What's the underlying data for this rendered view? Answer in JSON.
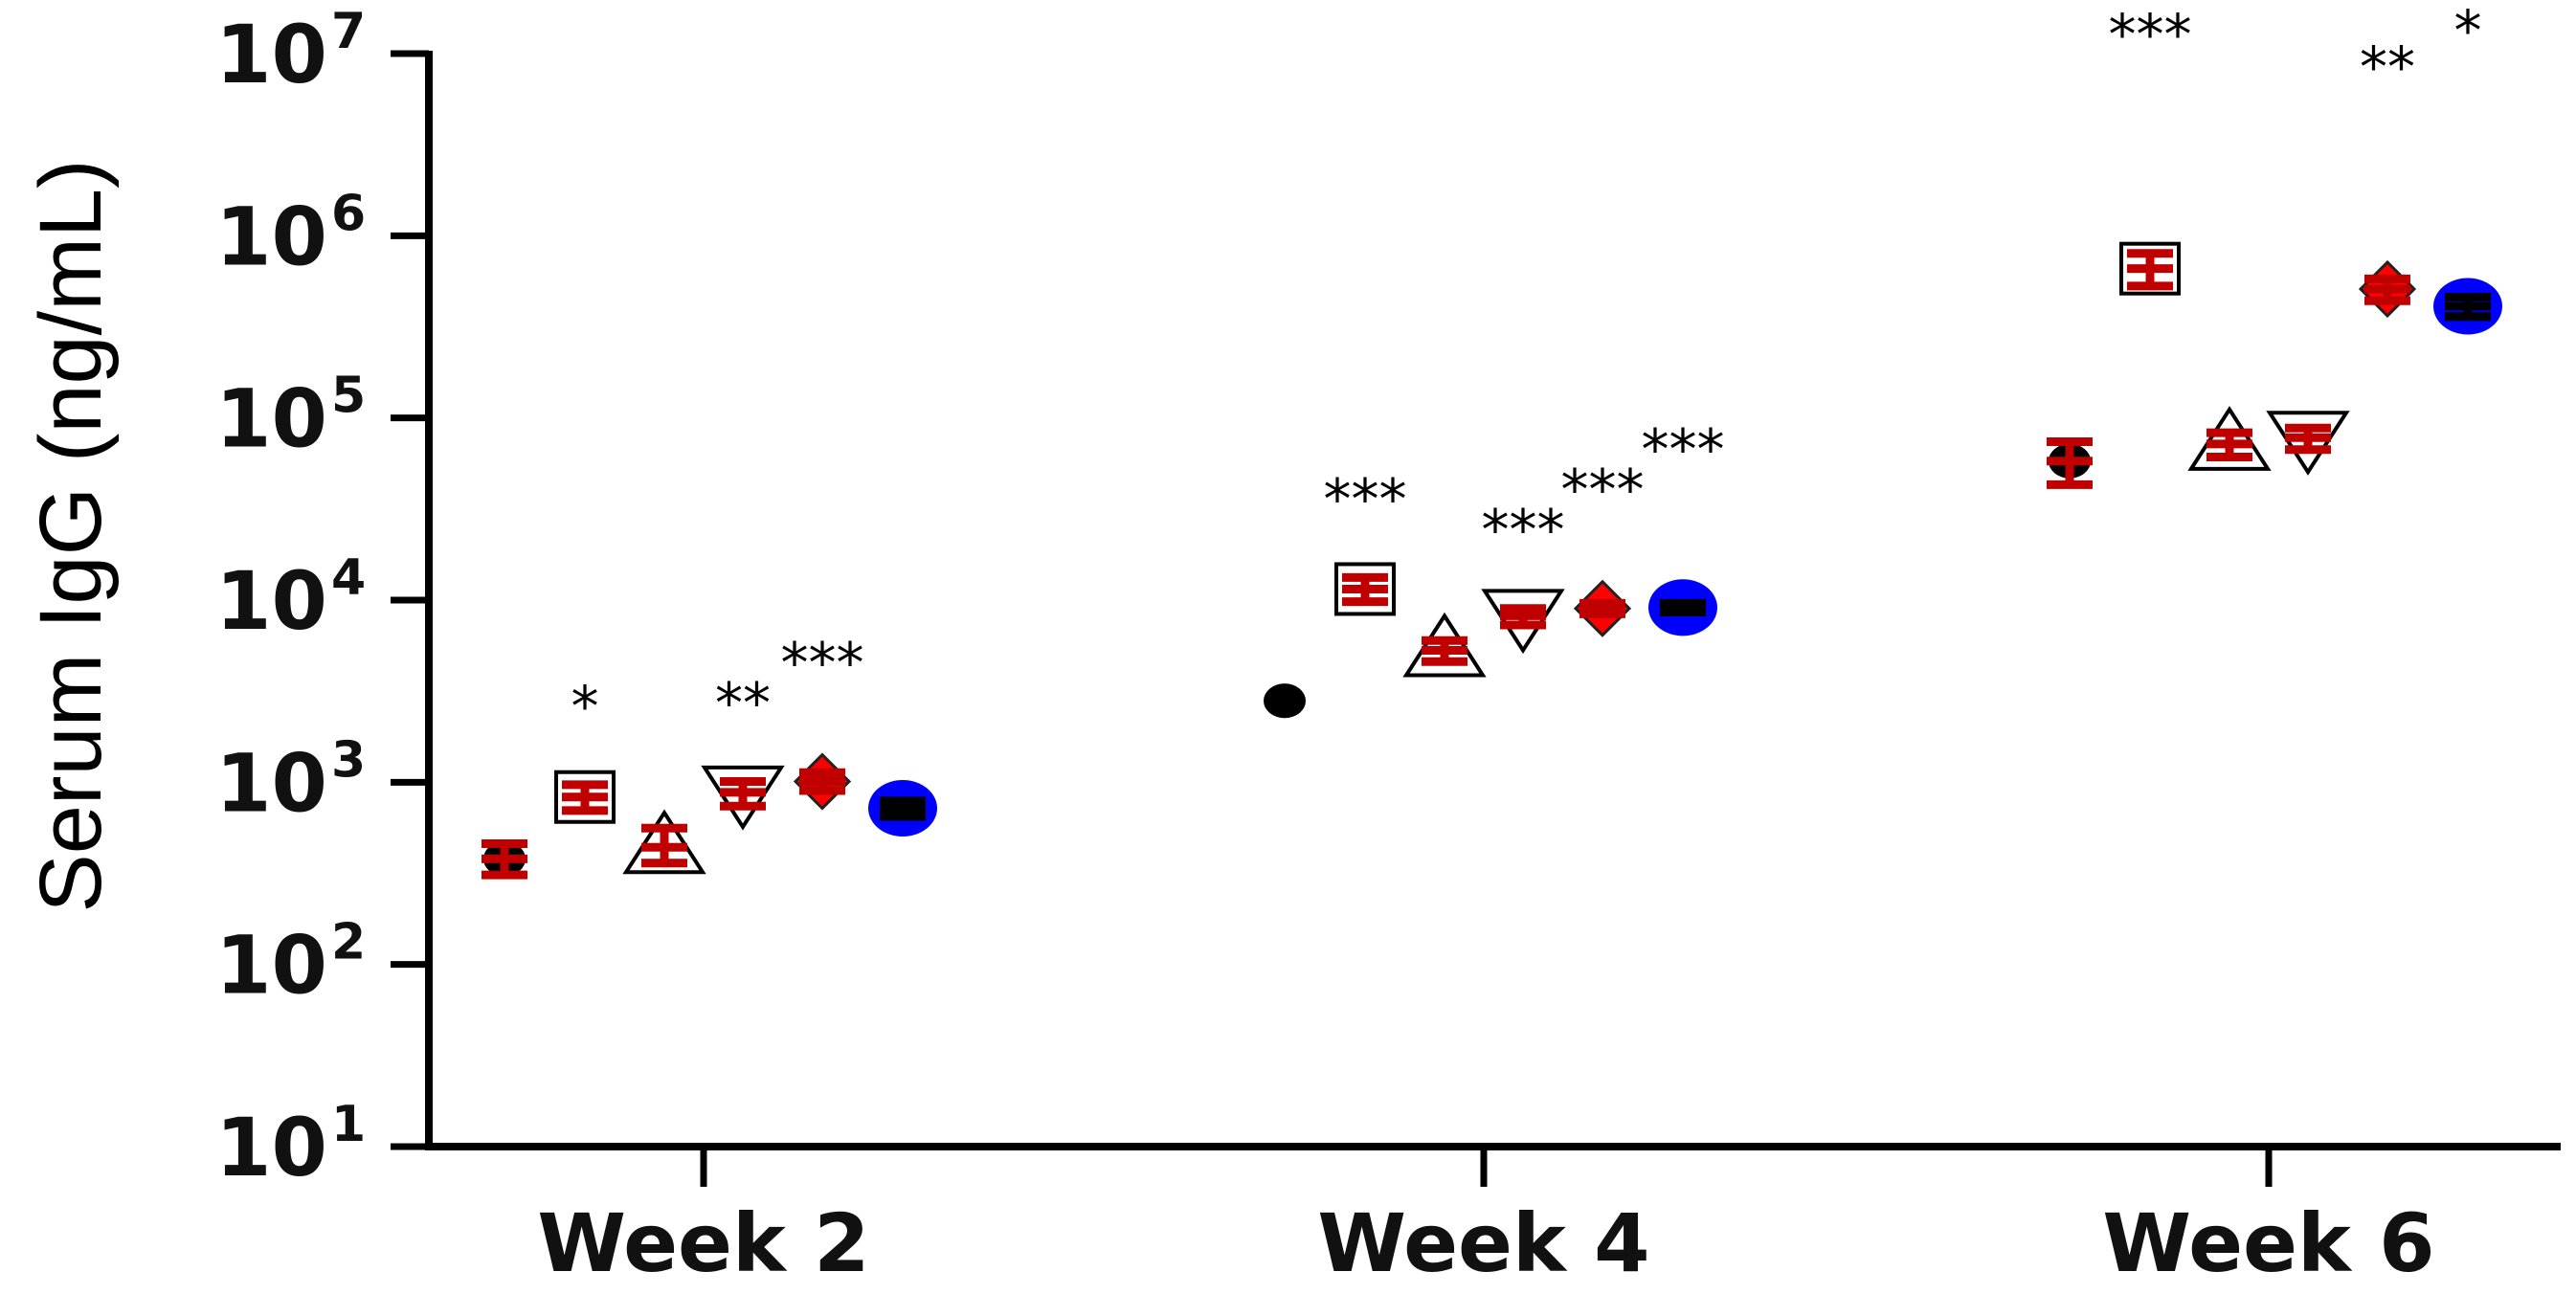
{
  "chart_data": {
    "type": "scatter",
    "title": "",
    "xlabel": "",
    "ylabel": "Serum IgG (ng/mL)",
    "y_scale": "log",
    "ylim": [
      10,
      10000000
    ],
    "y_ticks": [
      {
        "value": 10,
        "base": "10",
        "exp": "1"
      },
      {
        "value": 100,
        "base": "10",
        "exp": "2"
      },
      {
        "value": 1000,
        "base": "10",
        "exp": "3"
      },
      {
        "value": 10000,
        "base": "10",
        "exp": "4"
      },
      {
        "value": 100000,
        "base": "10",
        "exp": "5"
      },
      {
        "value": 1000000,
        "base": "10",
        "exp": "6"
      },
      {
        "value": 10000000,
        "base": "10",
        "exp": "7"
      }
    ],
    "categories": [
      "Week 2",
      "Week 4",
      "Week 6"
    ],
    "grid": false,
    "legend": "none",
    "series": [
      {
        "marker": "circle",
        "fill": "#000000",
        "bar_color": "#c00000",
        "values": [
          380,
          2800,
          58000
        ],
        "lower": [
          310,
          null,
          43000
        ],
        "upper": [
          460,
          null,
          74000
        ],
        "significance": [
          "",
          "",
          ""
        ]
      },
      {
        "marker": "square",
        "fill": "#ffffff",
        "bar_color": "#c00000",
        "values": [
          830,
          11500,
          660000
        ],
        "lower": [
          700,
          9800,
          530000
        ],
        "upper": [
          970,
          13300,
          800000
        ],
        "significance": [
          "*",
          "***",
          "***"
        ]
      },
      {
        "marker": "triangle-up",
        "fill": "#ffffff",
        "bar_color": "#c00000",
        "values": [
          440,
          5300,
          72000
        ],
        "lower": [
          360,
          4600,
          61000
        ],
        "upper": [
          560,
          6000,
          83000
        ],
        "significance": [
          "",
          "",
          ""
        ]
      },
      {
        "marker": "triangle-down",
        "fill": "#ffffff",
        "bar_color": "#c00000",
        "values": [
          880,
          8200,
          78000
        ],
        "lower": [
          740,
          7300,
          67000
        ],
        "upper": [
          1010,
          9000,
          88000
        ],
        "significance": [
          "**",
          "***",
          ""
        ]
      },
      {
        "marker": "diamond",
        "fill": "#ff0000",
        "bar_color": "#c00000",
        "values": [
          1010,
          9000,
          510000
        ],
        "lower": [
          900,
          8400,
          440000
        ],
        "upper": [
          1130,
          9600,
          580000
        ],
        "significance": [
          "***",
          "***",
          "**"
        ]
      },
      {
        "marker": "circle",
        "fill": "#0000ff",
        "bar_color": "#000000",
        "values": [
          720,
          9100,
          410000
        ],
        "lower": [
          650,
          8600,
          360000
        ],
        "upper": [
          790,
          9600,
          460000
        ],
        "significance": [
          "",
          "***",
          "*"
        ]
      }
    ]
  }
}
